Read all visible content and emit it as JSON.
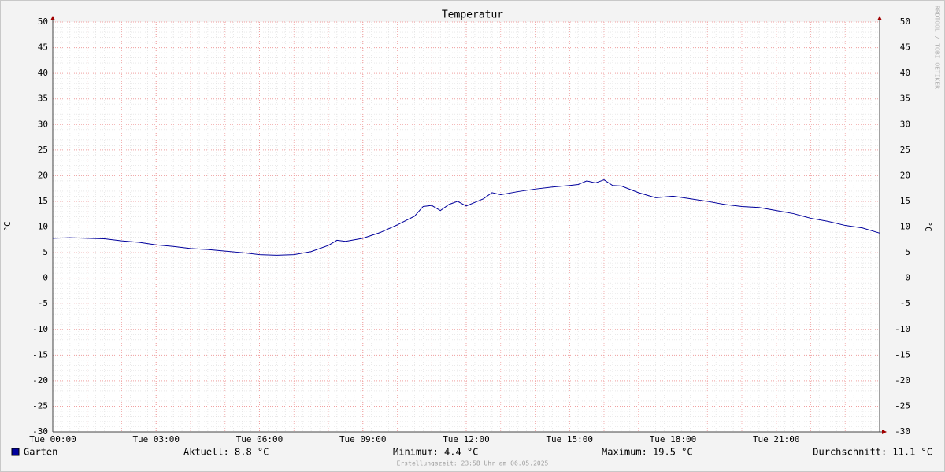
{
  "chart_data": {
    "type": "line",
    "title": "Temperatur",
    "y_label": "°C",
    "watermark": "RRDTOOL / TOBI OETIKER",
    "x": [
      0,
      0.5,
      1,
      1.5,
      2,
      2.5,
      3,
      3.5,
      4,
      4.5,
      5,
      5.5,
      6,
      6.5,
      7,
      7.5,
      8,
      8.25,
      8.5,
      9,
      9.5,
      10,
      10.5,
      10.75,
      11,
      11.25,
      11.5,
      11.75,
      12,
      12.5,
      12.75,
      13,
      13.5,
      14,
      14.5,
      15,
      15.25,
      15.5,
      15.75,
      16,
      16.25,
      16.5,
      17,
      17.5,
      18,
      18.5,
      19,
      19.5,
      20,
      20.5,
      21,
      21.5,
      22,
      22.5,
      23,
      23.5,
      24
    ],
    "series": [
      {
        "name": "Garten",
        "color": "#00009c",
        "values": [
          7.8,
          7.9,
          7.8,
          7.7,
          7.3,
          7.0,
          6.5,
          6.2,
          5.8,
          5.6,
          5.3,
          5.0,
          4.6,
          4.5,
          4.6,
          5.2,
          6.4,
          7.4,
          7.2,
          7.8,
          8.9,
          10.4,
          12.1,
          14.0,
          14.2,
          13.2,
          14.4,
          15.0,
          14.1,
          15.5,
          16.7,
          16.3,
          16.9,
          17.4,
          17.8,
          18.1,
          18.3,
          19.0,
          18.6,
          19.2,
          18.1,
          18.0,
          16.7,
          15.7,
          16.0,
          15.5,
          15.0,
          14.4,
          14.0,
          13.8,
          13.2,
          12.6,
          11.7,
          11.1,
          10.3,
          9.8,
          8.8
        ]
      }
    ],
    "xlim": [
      0,
      24
    ],
    "xticks": [
      {
        "value": 0,
        "label": "Tue 00:00"
      },
      {
        "value": 3,
        "label": "Tue 03:00"
      },
      {
        "value": 6,
        "label": "Tue 06:00"
      },
      {
        "value": 9,
        "label": "Tue 09:00"
      },
      {
        "value": 12,
        "label": "Tue 12:00"
      },
      {
        "value": 15,
        "label": "Tue 15:00"
      },
      {
        "value": 18,
        "label": "Tue 18:00"
      },
      {
        "value": 21,
        "label": "Tue 21:00"
      }
    ],
    "ylim": [
      -30,
      50
    ],
    "yticks": [
      -30,
      -25,
      -20,
      -15,
      -10,
      -5,
      0,
      5,
      10,
      15,
      20,
      25,
      30,
      35,
      40,
      45,
      50
    ],
    "grid": true,
    "stats": [
      "Aktuell: 8.8 °C",
      "Minimum: 4.4 °C",
      "Maximum: 19.5 °C",
      "Durchschnitt: 11.1 °C"
    ],
    "footer": "Erstellungszeit: 23:58 Uhr am 06.05.2025"
  }
}
